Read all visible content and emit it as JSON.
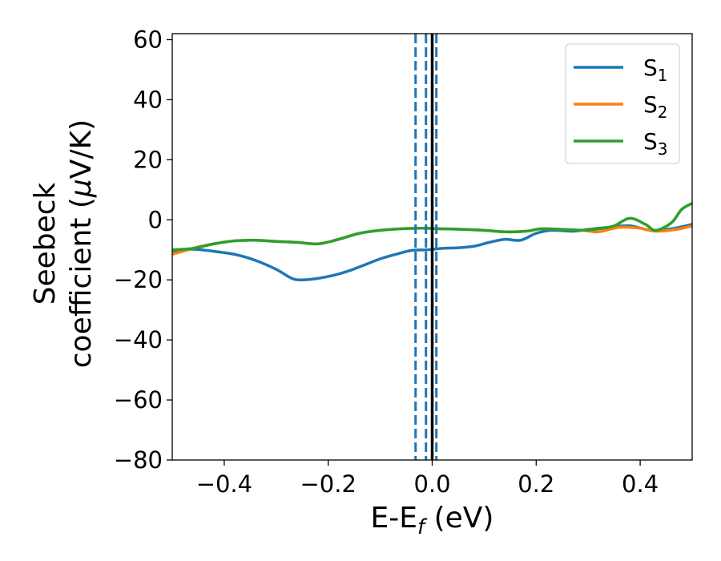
{
  "chart_data": {
    "type": "line",
    "title": "",
    "xlabel": {
      "base": "E-E",
      "sub": "f",
      "rest": " (eV)"
    },
    "ylabel": {
      "line1": "Seebeck",
      "line2_prefix": "coefficient  (",
      "mu": "μ",
      "line2_suffix": "V/K)"
    },
    "xlim": [
      -0.5,
      0.5
    ],
    "ylim": [
      -80,
      62
    ],
    "xticks": [
      {
        "value": -0.4,
        "label": "−0.4"
      },
      {
        "value": -0.2,
        "label": "−0.2"
      },
      {
        "value": 0.0,
        "label": "0.0"
      },
      {
        "value": 0.2,
        "label": "0.2"
      },
      {
        "value": 0.4,
        "label": "0.4"
      }
    ],
    "yticks": [
      {
        "value": 60,
        "label": "60"
      },
      {
        "value": 40,
        "label": "40"
      },
      {
        "value": 20,
        "label": "20"
      },
      {
        "value": 0,
        "label": "0"
      },
      {
        "value": -20,
        "label": "−20"
      },
      {
        "value": -40,
        "label": "−40"
      },
      {
        "value": -60,
        "label": "−60"
      },
      {
        "value": -80,
        "label": "−80"
      }
    ],
    "grid": false,
    "legend_position": "top-right",
    "vlines": [
      {
        "x": -0.032,
        "style": "dashed",
        "color": "#1f77b4"
      },
      {
        "x": -0.012,
        "style": "dashed",
        "color": "#1f77b4"
      },
      {
        "x": 0.008,
        "style": "dashed",
        "color": "#1f77b4"
      },
      {
        "x": 0.0,
        "style": "solid",
        "color": "#000000"
      }
    ],
    "series": [
      {
        "name": "S",
        "sub": "1",
        "color": "#1f77b4",
        "x": [
          -0.5,
          -0.46,
          -0.42,
          -0.38,
          -0.34,
          -0.3,
          -0.27,
          -0.25,
          -0.22,
          -0.19,
          -0.16,
          -0.13,
          -0.1,
          -0.07,
          -0.04,
          -0.01,
          0.02,
          0.05,
          0.08,
          0.11,
          0.14,
          0.17,
          0.2,
          0.23,
          0.27,
          0.3,
          0.34,
          0.38,
          0.42,
          0.46,
          0.5
        ],
        "y": [
          -10.5,
          -9.8,
          -10.5,
          -11.5,
          -13.5,
          -16.5,
          -19.5,
          -20.0,
          -19.5,
          -18.5,
          -17.0,
          -15.0,
          -13.0,
          -11.5,
          -10.2,
          -10.0,
          -9.5,
          -9.3,
          -8.8,
          -7.5,
          -6.5,
          -6.8,
          -4.5,
          -3.5,
          -3.8,
          -3.2,
          -2.5,
          -2.0,
          -3.5,
          -3.0,
          -1.5
        ]
      },
      {
        "name": "S",
        "sub": "2",
        "color": "#ff7f0e",
        "x": [
          -0.5,
          -0.46,
          -0.42,
          -0.38,
          -0.34,
          -0.3,
          -0.26,
          -0.22,
          -0.18,
          -0.14,
          -0.1,
          -0.06,
          -0.02,
          0.02,
          0.06,
          0.1,
          0.14,
          0.18,
          0.21,
          0.25,
          0.29,
          0.32,
          0.36,
          0.4,
          0.43,
          0.47,
          0.5
        ],
        "y": [
          -11.5,
          -9.5,
          -8.0,
          -7.0,
          -6.8,
          -7.2,
          -7.5,
          -8.0,
          -6.5,
          -4.5,
          -3.5,
          -3.0,
          -2.8,
          -3.0,
          -3.2,
          -3.5,
          -4.0,
          -3.8,
          -3.0,
          -3.2,
          -3.5,
          -4.0,
          -2.5,
          -2.8,
          -3.8,
          -3.2,
          -2.0
        ]
      },
      {
        "name": "S",
        "sub": "3",
        "color": "#2ca02c",
        "x": [
          -0.5,
          -0.46,
          -0.42,
          -0.38,
          -0.34,
          -0.3,
          -0.26,
          -0.22,
          -0.18,
          -0.14,
          -0.1,
          -0.06,
          -0.02,
          0.02,
          0.06,
          0.1,
          0.14,
          0.18,
          0.21,
          0.25,
          0.29,
          0.32,
          0.35,
          0.38,
          0.41,
          0.43,
          0.46,
          0.48,
          0.5
        ],
        "y": [
          -10.0,
          -9.5,
          -8.0,
          -7.0,
          -6.8,
          -7.2,
          -7.5,
          -8.0,
          -6.5,
          -4.5,
          -3.5,
          -3.0,
          -2.8,
          -3.0,
          -3.2,
          -3.5,
          -4.0,
          -3.8,
          -3.0,
          -3.2,
          -3.5,
          -3.0,
          -2.0,
          0.5,
          -1.5,
          -3.5,
          -1.0,
          3.5,
          5.5
        ]
      }
    ]
  }
}
